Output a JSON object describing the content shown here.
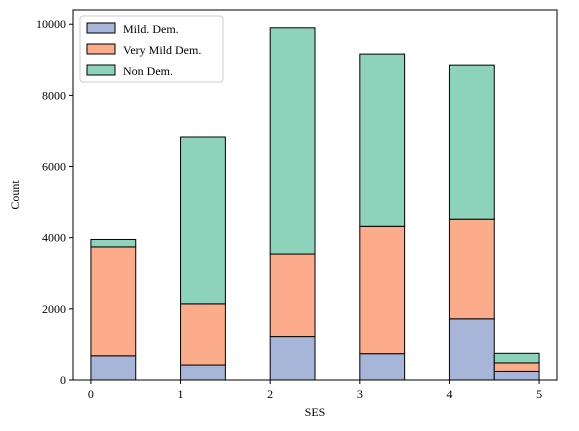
{
  "chart_data": {
    "type": "bar",
    "stacked": true,
    "xlabel": "SES",
    "ylabel": "Count",
    "xlim": [
      -0.2,
      5.2
    ],
    "ylim": [
      0,
      10400
    ],
    "xticks": [
      0,
      1,
      2,
      3,
      4,
      5
    ],
    "yticks": [
      0,
      2000,
      4000,
      6000,
      8000,
      10000
    ],
    "bar_width": 0.5,
    "bins": [
      {
        "x0": 0.0,
        "x1": 0.5
      },
      {
        "x0": 1.0,
        "x1": 1.5
      },
      {
        "x0": 2.0,
        "x1": 2.5
      },
      {
        "x0": 3.0,
        "x1": 3.5
      },
      {
        "x0": 4.0,
        "x1": 4.5
      },
      {
        "x0": 4.5,
        "x1": 5.0
      }
    ],
    "series": [
      {
        "name": "Mild. Dem.",
        "color": "#a7b5d8",
        "values": [
          680,
          420,
          1220,
          740,
          1720,
          240
        ]
      },
      {
        "name": "Very Mild Dem.",
        "color": "#fcac8a",
        "values": [
          3060,
          1720,
          2320,
          3580,
          2800,
          240
        ]
      },
      {
        "name": "Non Dem.",
        "color": "#8dd2bb",
        "values": [
          210,
          4690,
          6360,
          4840,
          4330,
          270
        ]
      }
    ],
    "legend_position": "top-left",
    "grid": false
  }
}
